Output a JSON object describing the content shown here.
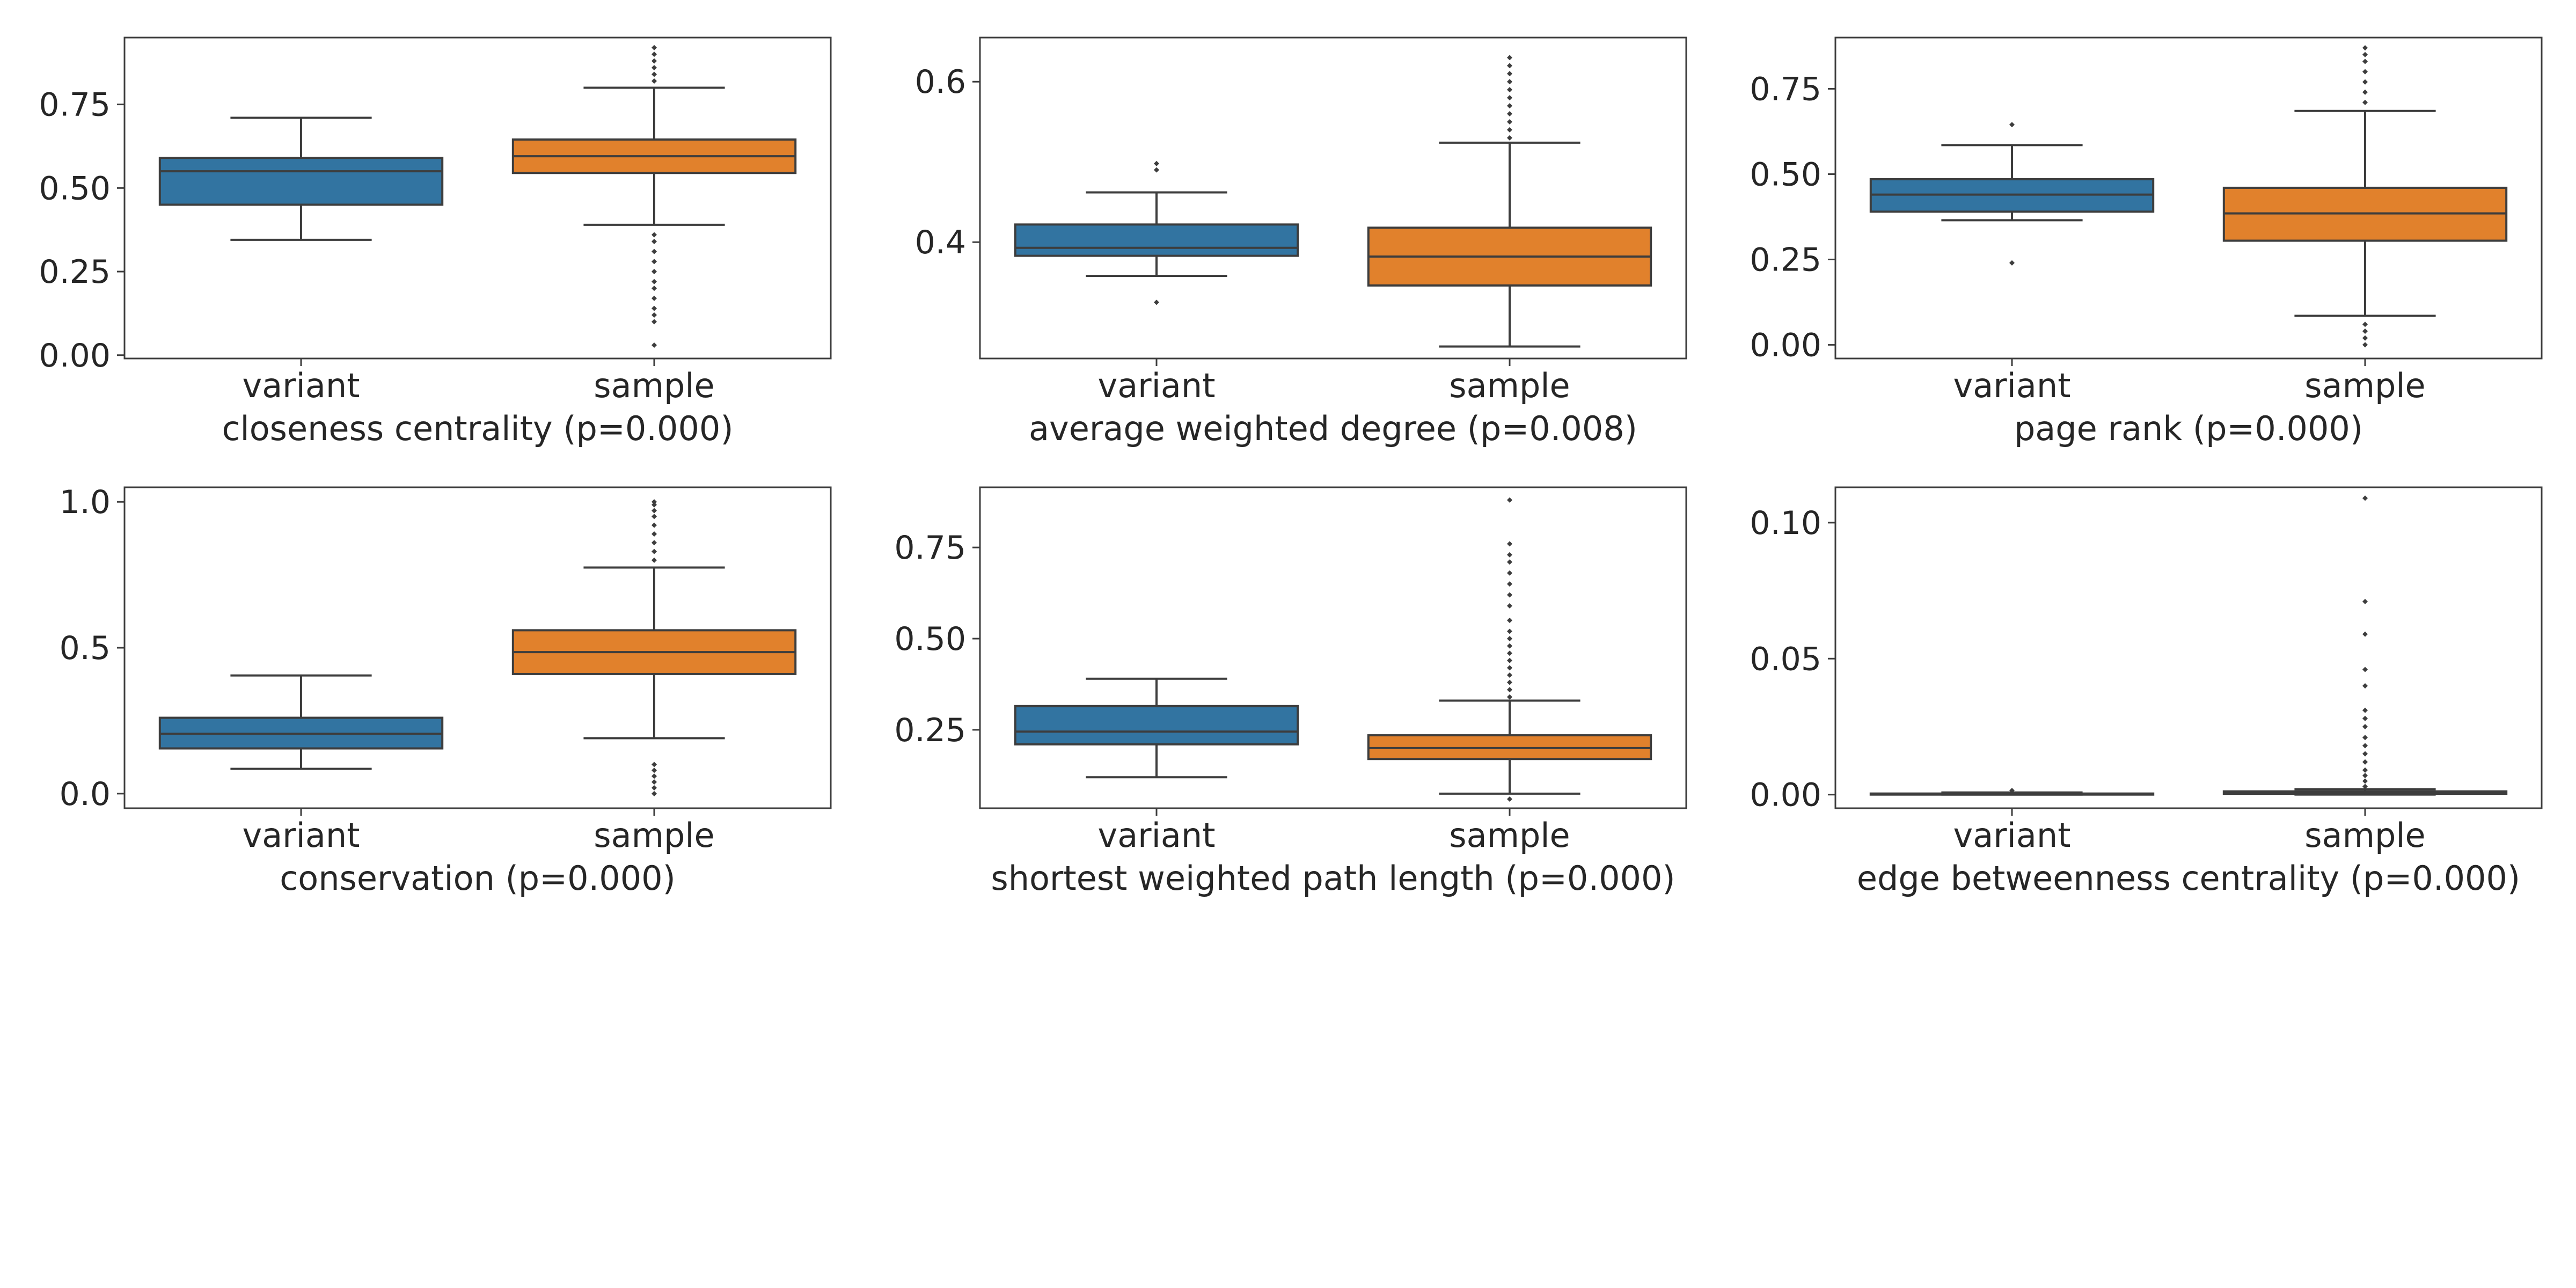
{
  "colors": {
    "variant": "#3274a1",
    "sample": "#e1812c",
    "line": "#3d3d3d",
    "frame": "#3d3d3d"
  },
  "chart_data": [
    {
      "type": "box",
      "xlabel": "closeness centrality (p=0.000)",
      "ylim": [
        -0.01,
        0.95
      ],
      "yticks": [
        "0.00",
        "0.25",
        "0.50",
        "0.75"
      ],
      "categories": [
        "variant",
        "sample"
      ],
      "boxes": [
        {
          "whisker_low": 0.345,
          "q1": 0.45,
          "median": 0.55,
          "q3": 0.59,
          "whisker_high": 0.71,
          "outliers": []
        },
        {
          "whisker_low": 0.39,
          "q1": 0.545,
          "median": 0.595,
          "q3": 0.645,
          "whisker_high": 0.8,
          "outliers": [
            0.03,
            0.1,
            0.12,
            0.14,
            0.17,
            0.2,
            0.22,
            0.25,
            0.28,
            0.31,
            0.34,
            0.36,
            0.82,
            0.84,
            0.86,
            0.88,
            0.9,
            0.92
          ]
        }
      ]
    },
    {
      "type": "box",
      "xlabel": "average weighted degree (p=0.008)",
      "ylim": [
        0.255,
        0.655
      ],
      "yticks": [
        "0.4",
        "0.6"
      ],
      "categories": [
        "variant",
        "sample"
      ],
      "boxes": [
        {
          "whisker_low": 0.358,
          "q1": 0.383,
          "median": 0.393,
          "q3": 0.422,
          "whisker_high": 0.462,
          "outliers": [
            0.325,
            0.49,
            0.498
          ]
        },
        {
          "whisker_low": 0.27,
          "q1": 0.346,
          "median": 0.382,
          "q3": 0.418,
          "whisker_high": 0.524,
          "outliers": [
            0.53,
            0.54,
            0.55,
            0.56,
            0.57,
            0.58,
            0.59,
            0.6,
            0.61,
            0.62,
            0.63
          ]
        }
      ]
    },
    {
      "type": "box",
      "xlabel": "page rank (p=0.000)",
      "ylim": [
        -0.04,
        0.9
      ],
      "yticks": [
        "0.00",
        "0.25",
        "0.50",
        "0.75"
      ],
      "categories": [
        "variant",
        "sample"
      ],
      "boxes": [
        {
          "whisker_low": 0.365,
          "q1": 0.39,
          "median": 0.44,
          "q3": 0.485,
          "whisker_high": 0.585,
          "outliers": [
            0.24,
            0.645
          ]
        },
        {
          "whisker_low": 0.085,
          "q1": 0.305,
          "median": 0.385,
          "q3": 0.46,
          "whisker_high": 0.685,
          "outliers": [
            0.0,
            0.02,
            0.04,
            0.06,
            0.71,
            0.74,
            0.77,
            0.8,
            0.83,
            0.85,
            0.87
          ]
        }
      ]
    },
    {
      "type": "box",
      "xlabel": "conservation (p=0.000)",
      "ylim": [
        -0.05,
        1.05
      ],
      "yticks": [
        "0.0",
        "0.5",
        "1.0"
      ],
      "categories": [
        "variant",
        "sample"
      ],
      "boxes": [
        {
          "whisker_low": 0.085,
          "q1": 0.155,
          "median": 0.205,
          "q3": 0.26,
          "whisker_high": 0.405,
          "outliers": []
        },
        {
          "whisker_low": 0.19,
          "q1": 0.41,
          "median": 0.485,
          "q3": 0.56,
          "whisker_high": 0.775,
          "outliers": [
            0.0,
            0.02,
            0.04,
            0.06,
            0.08,
            0.1,
            0.8,
            0.83,
            0.86,
            0.89,
            0.92,
            0.95,
            0.97,
            0.99,
            1.0
          ]
        }
      ]
    },
    {
      "type": "box",
      "xlabel": "shortest weighted path length (p=0.000)",
      "ylim": [
        0.035,
        0.915
      ],
      "yticks": [
        "0.25",
        "0.50",
        "0.75"
      ],
      "categories": [
        "variant",
        "sample"
      ],
      "boxes": [
        {
          "whisker_low": 0.12,
          "q1": 0.21,
          "median": 0.245,
          "q3": 0.315,
          "whisker_high": 0.39,
          "outliers": []
        },
        {
          "whisker_low": 0.075,
          "q1": 0.17,
          "median": 0.2,
          "q3": 0.235,
          "whisker_high": 0.33,
          "outliers": [
            0.06,
            0.34,
            0.36,
            0.38,
            0.4,
            0.42,
            0.44,
            0.46,
            0.48,
            0.5,
            0.52,
            0.55,
            0.59,
            0.62,
            0.65,
            0.68,
            0.71,
            0.73,
            0.76,
            0.88
          ]
        }
      ]
    },
    {
      "type": "box",
      "xlabel": "edge betweenness centrality (p=0.000)",
      "ylim": [
        -0.005,
        0.113
      ],
      "yticks": [
        "0.00",
        "0.05",
        "0.10"
      ],
      "categories": [
        "variant",
        "sample"
      ],
      "boxes": [
        {
          "whisker_low": 0.0,
          "q1": 0.0,
          "median": 0.0002,
          "q3": 0.0004,
          "whisker_high": 0.0008,
          "outliers": [
            0.0015
          ]
        },
        {
          "whisker_low": 0.0,
          "q1": 0.0003,
          "median": 0.0006,
          "q3": 0.0012,
          "whisker_high": 0.002,
          "outliers": [
            0.003,
            0.005,
            0.007,
            0.009,
            0.012,
            0.015,
            0.018,
            0.021,
            0.025,
            0.028,
            0.031,
            0.04,
            0.046,
            0.059,
            0.071,
            0.109
          ]
        }
      ]
    }
  ]
}
